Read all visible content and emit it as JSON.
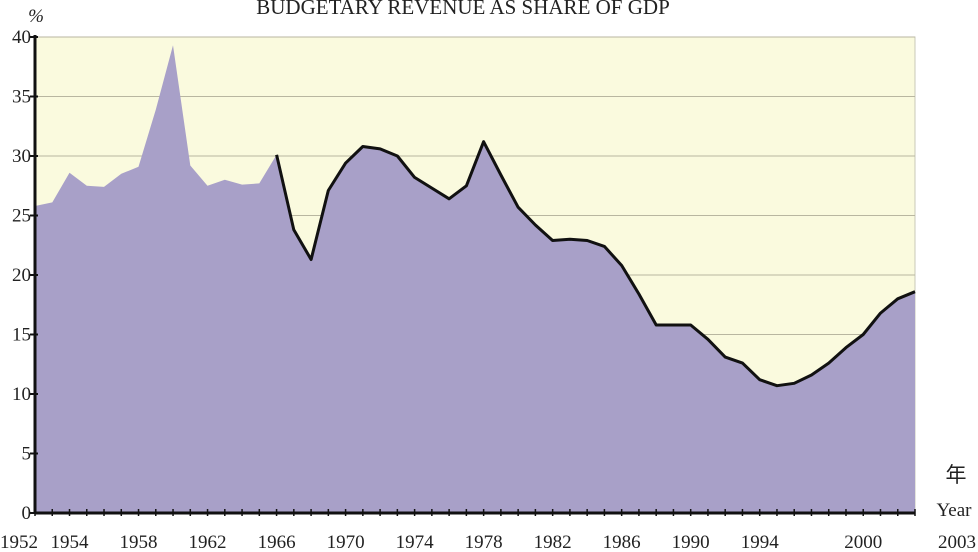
{
  "chart_data": {
    "type": "area",
    "title": "BUDGETARY REVENUE AS SHARE OF GDP",
    "ylabel": "%",
    "xlabel_cn": "年",
    "xlabel": "Year",
    "ylim": [
      0,
      40
    ],
    "xlim": [
      1952,
      2003
    ],
    "yticks": [
      0,
      5,
      10,
      15,
      20,
      25,
      30,
      35,
      40
    ],
    "xticks": [
      1952,
      1954,
      1958,
      1962,
      1966,
      1970,
      1974,
      1978,
      1982,
      1986,
      1990,
      1994,
      2000,
      2003
    ],
    "grid": "horizontal",
    "colors": {
      "background": "#fafade",
      "fill": "#a8a0c8",
      "line": "#111111",
      "grid": "#b8b6a0"
    },
    "series": [
      {
        "x": [
          1952,
          1953,
          1954,
          1955,
          1956,
          1957,
          1958,
          1959,
          1960,
          1961,
          1962,
          1963,
          1964,
          1965,
          1966,
          1967,
          1968,
          1969,
          1970,
          1971,
          1972,
          1973,
          1974,
          1975,
          1976,
          1977,
          1978,
          1979,
          1980,
          1981,
          1982,
          1983,
          1984,
          1985,
          1986,
          1987,
          1988,
          1989,
          1990,
          1991,
          1992,
          1993,
          1994,
          1995,
          1996,
          1997,
          1998,
          1999,
          2000,
          2001,
          2002,
          2003
        ],
        "values": [
          25.8,
          26.1,
          28.6,
          27.5,
          27.4,
          28.5,
          29.1,
          33.9,
          39.3,
          29.2,
          27.5,
          28.0,
          27.6,
          27.7,
          30.1,
          23.8,
          21.3,
          27.1,
          29.4,
          30.8,
          30.6,
          30.0,
          28.2,
          27.3,
          26.4,
          27.5,
          31.2,
          28.4,
          25.7,
          24.2,
          22.9,
          23.0,
          22.9,
          22.4,
          20.8,
          18.4,
          15.8,
          15.8,
          15.8,
          14.6,
          13.1,
          12.6,
          11.2,
          10.7,
          10.9,
          11.6,
          12.6,
          13.9,
          15.0,
          16.8,
          18.0,
          18.6
        ]
      }
    ]
  }
}
